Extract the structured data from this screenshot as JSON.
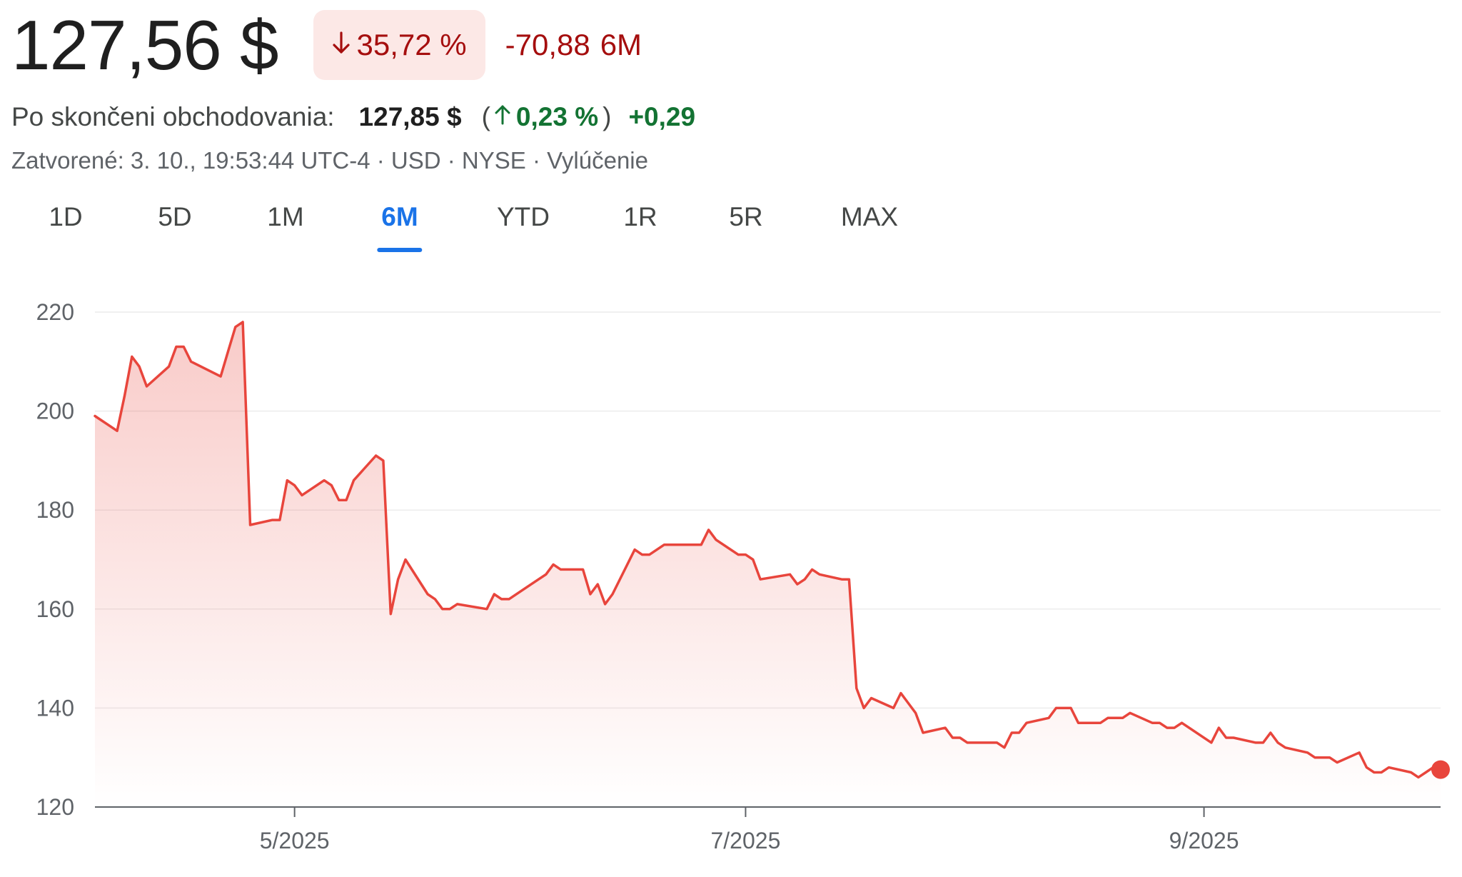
{
  "quote": {
    "price": "127,56 $",
    "change_pct": "35,72 %",
    "change_abs": "-70,88",
    "period": "6M",
    "direction_icon": "arrow-down-icon"
  },
  "after_hours": {
    "label": "Po skončeni obchodovania:",
    "price": "127,85 $",
    "paren_open": "(",
    "pct": "0,23 %",
    "paren_close": ")",
    "abs": "+0,29",
    "direction_icon": "arrow-up-icon"
  },
  "meta": {
    "text": "Zatvorené: 3. 10., 19:53:44 UTC-4 · USD · NYSE · Vylúčenie"
  },
  "tabs": [
    {
      "label": "1D"
    },
    {
      "label": "5D"
    },
    {
      "label": "1M"
    },
    {
      "label": "6M",
      "active": true
    },
    {
      "label": "YTD"
    },
    {
      "label": "1R"
    },
    {
      "label": "5R"
    },
    {
      "label": "MAX"
    }
  ],
  "colors": {
    "negative": "#a50e0e",
    "negative_bg": "#fce8e6",
    "positive": "#137333",
    "line": "#e8453c",
    "accent": "#1a73e8"
  },
  "chart_data": {
    "type": "area",
    "ylim": [
      120,
      220
    ],
    "yticks": [
      220,
      200,
      180,
      160,
      140,
      120
    ],
    "xlim": [
      "2025-04-04",
      "2025-10-03"
    ],
    "xticks": [
      {
        "date": "2025-05-01",
        "label": "5/2025"
      },
      {
        "date": "2025-07-01",
        "label": "7/2025"
      },
      {
        "date": "2025-09-01",
        "label": "9/2025"
      }
    ],
    "grid": true,
    "series": [
      {
        "x": [
          "2025-04-04",
          "2025-04-07",
          "2025-04-08",
          "2025-04-09",
          "2025-04-10",
          "2025-04-11",
          "2025-04-14",
          "2025-04-15",
          "2025-04-16",
          "2025-04-17",
          "2025-04-21",
          "2025-04-22",
          "2025-04-23",
          "2025-04-24",
          "2025-04-25",
          "2025-04-28",
          "2025-04-29",
          "2025-04-30",
          "2025-05-01",
          "2025-05-02",
          "2025-05-05",
          "2025-05-06",
          "2025-05-07",
          "2025-05-08",
          "2025-05-09",
          "2025-05-12",
          "2025-05-13",
          "2025-05-14",
          "2025-05-15",
          "2025-05-16",
          "2025-05-19",
          "2025-05-20",
          "2025-05-21",
          "2025-05-22",
          "2025-05-23",
          "2025-05-27",
          "2025-05-28",
          "2025-05-29",
          "2025-05-30",
          "2025-06-02",
          "2025-06-03",
          "2025-06-04",
          "2025-06-05",
          "2025-06-06",
          "2025-06-09",
          "2025-06-10",
          "2025-06-11",
          "2025-06-12",
          "2025-06-13",
          "2025-06-16",
          "2025-06-17",
          "2025-06-18",
          "2025-06-20",
          "2025-06-23",
          "2025-06-24",
          "2025-06-25",
          "2025-06-26",
          "2025-06-27",
          "2025-06-30",
          "2025-07-01",
          "2025-07-02",
          "2025-07-03",
          "2025-07-07",
          "2025-07-08",
          "2025-07-09",
          "2025-07-10",
          "2025-07-11",
          "2025-07-14",
          "2025-07-15",
          "2025-07-16",
          "2025-07-17",
          "2025-07-18",
          "2025-07-21",
          "2025-07-22",
          "2025-07-23",
          "2025-07-24",
          "2025-07-25",
          "2025-07-28",
          "2025-07-29",
          "2025-07-30",
          "2025-07-31",
          "2025-08-01",
          "2025-08-04",
          "2025-08-05",
          "2025-08-06",
          "2025-08-07",
          "2025-08-08",
          "2025-08-11",
          "2025-08-12",
          "2025-08-13",
          "2025-08-14",
          "2025-08-15",
          "2025-08-18",
          "2025-08-19",
          "2025-08-20",
          "2025-08-21",
          "2025-08-22",
          "2025-08-25",
          "2025-08-26",
          "2025-08-27",
          "2025-08-28",
          "2025-08-29",
          "2025-09-02",
          "2025-09-03",
          "2025-09-04",
          "2025-09-05",
          "2025-09-08",
          "2025-09-09",
          "2025-09-10",
          "2025-09-11",
          "2025-09-12",
          "2025-09-15",
          "2025-09-16",
          "2025-09-17",
          "2025-09-18",
          "2025-09-19",
          "2025-09-22",
          "2025-09-23",
          "2025-09-24",
          "2025-09-25",
          "2025-09-26",
          "2025-09-29",
          "2025-09-30",
          "2025-10-01",
          "2025-10-02",
          "2025-10-03"
        ],
        "values": [
          199,
          196,
          203,
          211,
          209,
          205,
          209,
          213,
          213,
          210,
          207,
          212,
          217,
          218,
          177,
          178,
          178,
          186,
          185,
          183,
          186,
          185,
          182,
          182,
          186,
          191,
          190,
          159,
          166,
          170,
          163,
          162,
          160,
          160,
          161,
          160,
          163,
          162,
          162,
          165,
          166,
          167,
          169,
          168,
          168,
          163,
          165,
          161,
          163,
          172,
          171,
          171,
          173,
          173,
          173,
          173,
          176,
          174,
          171,
          171,
          170,
          166,
          167,
          165,
          166,
          168,
          167,
          166,
          166,
          144,
          140,
          142,
          140,
          143,
          141,
          139,
          135,
          136,
          134,
          134,
          133,
          133,
          133,
          132,
          135,
          135,
          137,
          138,
          140,
          140,
          140,
          137,
          137,
          138,
          138,
          138,
          139,
          137,
          137,
          136,
          136,
          137,
          133,
          136,
          134,
          134,
          133,
          133,
          135,
          133,
          132,
          131,
          130,
          130,
          130,
          129,
          131,
          128,
          127,
          127,
          128,
          127,
          126,
          127,
          128,
          127.56
        ]
      }
    ]
  }
}
